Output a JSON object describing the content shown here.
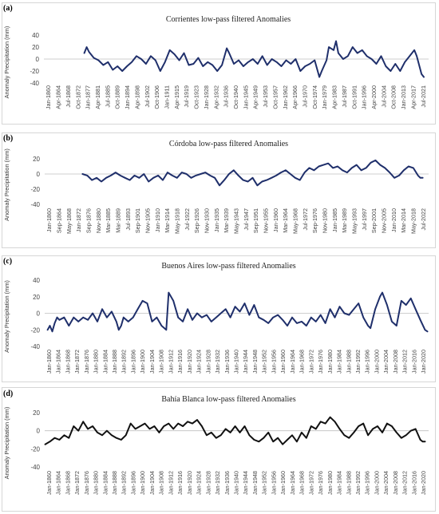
{
  "figure": {
    "panels": [
      {
        "letter": "(a)"
      },
      {
        "letter": "(b)"
      },
      {
        "letter": "(c)"
      },
      {
        "letter": "(d)"
      }
    ]
  },
  "chart_data": [
    {
      "type": "line",
      "title": "Corrientes low-pass filtered Anomalies",
      "ylabel": "Anomaly Precipitation (mm)",
      "ylim": [
        -40,
        40
      ],
      "yticks": [
        -40,
        -20,
        0,
        20,
        40
      ],
      "grid": false,
      "color": "#1f2f6b",
      "xlim": [
        1860.0,
        2022.0
      ],
      "xtick_labels": [
        "Jan-1860",
        "Apr-1864",
        "Jul-1868",
        "Oct-1872",
        "Jan-1877",
        "Apr-1881",
        "Jul-1885",
        "Oct-1889",
        "Jan-1894",
        "Apr-1898",
        "Jul-1902",
        "Oct-1906",
        "Jan-1911",
        "Apr-1915",
        "Jul-1919",
        "Oct-1923",
        "Jan-1928",
        "Apr-1932",
        "Jul-1936",
        "Oct-1940",
        "Jan-1945",
        "Apr-1949",
        "Jul-1953",
        "Oct-1957",
        "Jan-1962",
        "Apr-1966",
        "Jul-1970",
        "Oct-1974",
        "Jan-1979",
        "Apr-1983",
        "Jul-1987",
        "Oct-1991",
        "Jan-1996",
        "Apr-2000",
        "Jul-2004",
        "Oct-2008",
        "Jan-2013",
        "Apr-2017",
        "Jul-2021"
      ],
      "series": [
        {
          "x": [
            1877,
            1878,
            1879,
            1881,
            1883,
            1885,
            1887,
            1889,
            1891,
            1893,
            1895,
            1897,
            1899,
            1901,
            1903,
            1905,
            1907,
            1909,
            1911,
            1913,
            1915,
            1917,
            1919,
            1921,
            1923,
            1925,
            1927,
            1929,
            1931,
            1933,
            1935,
            1937,
            1938,
            1940,
            1942,
            1944,
            1946,
            1948,
            1950,
            1952,
            1954,
            1956,
            1958,
            1960,
            1962,
            1964,
            1966,
            1968,
            1970,
            1972,
            1974,
            1976,
            1977,
            1979,
            1980,
            1982,
            1983,
            1984,
            1986,
            1988,
            1990,
            1992,
            1994,
            1996,
            1998,
            2000,
            2002,
            2004,
            2006,
            2008,
            2010,
            2012,
            2014,
            2016,
            2017,
            2019,
            2020
          ],
          "y": [
            10,
            20,
            12,
            2,
            -2,
            -10,
            -5,
            -18,
            -12,
            -20,
            -12,
            -5,
            5,
            0,
            -8,
            5,
            -2,
            -20,
            -5,
            15,
            8,
            -2,
            10,
            -10,
            -8,
            2,
            -12,
            -5,
            -10,
            -20,
            -10,
            18,
            10,
            -8,
            -2,
            -12,
            -5,
            0,
            -8,
            5,
            -10,
            0,
            -5,
            -12,
            -2,
            -8,
            0,
            -20,
            -12,
            -8,
            -2,
            -30,
            -20,
            -2,
            20,
            15,
            30,
            10,
            0,
            5,
            20,
            10,
            15,
            5,
            0,
            -8,
            5,
            -12,
            -20,
            -8,
            -20,
            -5,
            5,
            15,
            5,
            -25,
            -30
          ]
        }
      ]
    },
    {
      "type": "line",
      "title": "Córdoba low-pass filtered Anomalies",
      "ylabel": "Anomaly Precipitation (mm)",
      "ylim": [
        -40,
        20
      ],
      "yticks": [
        -40,
        -20,
        0,
        20
      ],
      "grid": false,
      "color": "#1f2f6b",
      "xlim": [
        1860.0,
        2022.5
      ],
      "xtick_labels": [
        "Jan-1860",
        "Sep-1864",
        "May-1868",
        "Jan-1872",
        "Sep-1876",
        "Nov-1880",
        "Mar-1885",
        "Mar-1889",
        "Jul-1893",
        "Sep-1901",
        "Nov-1905",
        "Jan-1910",
        "Mar-1914",
        "May-1918",
        "Jul-1922",
        "Sep-1926",
        "Nov-1930",
        "Jan-1935",
        "Mar-1939",
        "May-1943",
        "Jul-1947",
        "Sep-1951",
        "Nov-1955",
        "Jan-1960",
        "Mar-1964",
        "May-1968",
        "Jul-1972",
        "Sep-1976",
        "Nov-1980",
        "Jan-1985",
        "Mar-1989",
        "May-1993",
        "Jul-1997",
        "Sep-2001",
        "Nov-2005",
        "Jan-2010",
        "Mar-2014",
        "May-2018",
        "Jul-2022"
      ],
      "series": [
        {
          "x": [
            1876,
            1878,
            1880,
            1882,
            1884,
            1886,
            1888,
            1890,
            1892,
            1894,
            1896,
            1898,
            1900,
            1902,
            1904,
            1906,
            1908,
            1910,
            1912,
            1914,
            1916,
            1918,
            1920,
            1922,
            1924,
            1926,
            1928,
            1930,
            1932,
            1934,
            1936,
            1938,
            1940,
            1942,
            1944,
            1946,
            1948,
            1950,
            1952,
            1954,
            1956,
            1958,
            1960,
            1962,
            1964,
            1966,
            1968,
            1970,
            1972,
            1974,
            1976,
            1978,
            1980,
            1982,
            1984,
            1986,
            1988,
            1990,
            1992,
            1994,
            1996,
            1998,
            2000,
            2002,
            2004,
            2006,
            2008,
            2010,
            2012,
            2014,
            2016,
            2018,
            2019,
            2020
          ],
          "y": [
            0,
            -2,
            -8,
            -5,
            -10,
            -5,
            -2,
            2,
            -2,
            -5,
            -8,
            -2,
            -5,
            0,
            -10,
            -5,
            -2,
            -8,
            2,
            -2,
            -5,
            2,
            0,
            -5,
            -2,
            0,
            2,
            -2,
            -5,
            -15,
            -8,
            0,
            5,
            -2,
            -8,
            -10,
            -5,
            -15,
            -10,
            -8,
            -5,
            -2,
            2,
            5,
            0,
            -5,
            -8,
            2,
            8,
            5,
            10,
            12,
            14,
            8,
            10,
            5,
            2,
            8,
            12,
            5,
            8,
            15,
            18,
            12,
            8,
            2,
            -5,
            -2,
            5,
            10,
            8,
            -2,
            -5,
            -5
          ]
        }
      ]
    },
    {
      "type": "line",
      "title": "Buenos Aires low-pass filtered Anomalies",
      "ylabel": "Anomaly Precipitation (mm)",
      "ylim": [
        -40,
        40
      ],
      "yticks": [
        -40,
        -20,
        0,
        20,
        40
      ],
      "grid": false,
      "color": "#1f2f6b",
      "xlim": [
        1859.8,
        2021.5
      ],
      "xtick_labels": [
        "Jan-1860",
        "Jan-1864",
        "Jan-1868",
        "Jan-1872",
        "Jan-1876",
        "Jan-1880",
        "Jan-1884",
        "Jan-1888",
        "Jan-1892",
        "Jan-1896",
        "Jan-1900",
        "Jan-1904",
        "Jan-1908",
        "Jan-1912",
        "Jan-1916",
        "Jan-1920",
        "Jan-1924",
        "Jan-1928",
        "Jan-1932",
        "Jan-1936",
        "Jan-1940",
        "Jan-1944",
        "Jan-1948",
        "Jan-1952",
        "Jan-1956",
        "Jan-1960",
        "Jan-1964",
        "Jan-1968",
        "Jan-1972",
        "Jan-1976",
        "Jan-1980",
        "Jan-1984",
        "Jan-1988",
        "Jan-1992",
        "Jan-1996",
        "Jan-2000",
        "Jan-2004",
        "Jan-2008",
        "Jan-2012",
        "Jan-2016",
        "Jan-2020"
      ],
      "series": [
        {
          "x": [
            1861,
            1862,
            1863,
            1864,
            1865,
            1866,
            1868,
            1870,
            1872,
            1874,
            1876,
            1878,
            1880,
            1882,
            1884,
            1886,
            1888,
            1890,
            1891,
            1892,
            1893,
            1895,
            1897,
            1899,
            1901,
            1903,
            1905,
            1907,
            1909,
            1911,
            1912,
            1914,
            1916,
            1918,
            1920,
            1922,
            1924,
            1926,
            1928,
            1930,
            1932,
            1934,
            1936,
            1938,
            1940,
            1942,
            1944,
            1946,
            1948,
            1950,
            1952,
            1954,
            1956,
            1958,
            1960,
            1962,
            1964,
            1966,
            1968,
            1970,
            1972,
            1974,
            1976,
            1978,
            1980,
            1982,
            1984,
            1986,
            1988,
            1990,
            1992,
            1994,
            1996,
            1997,
            1999,
            2001,
            2002,
            2004,
            2006,
            2008,
            2010,
            2012,
            2014,
            2016,
            2018,
            2020,
            2021
          ],
          "y": [
            -20,
            -15,
            -22,
            -12,
            -5,
            -8,
            -5,
            -15,
            -5,
            -10,
            -5,
            -8,
            0,
            -10,
            5,
            -5,
            2,
            -10,
            -20,
            -15,
            -5,
            -10,
            -5,
            5,
            15,
            12,
            -10,
            -5,
            -15,
            -20,
            25,
            15,
            -5,
            -10,
            5,
            -8,
            0,
            -5,
            -2,
            -10,
            -5,
            0,
            5,
            -5,
            8,
            2,
            12,
            -2,
            10,
            -5,
            -8,
            -12,
            -5,
            -2,
            -8,
            -15,
            -5,
            -12,
            -10,
            -15,
            -5,
            -10,
            -2,
            -12,
            5,
            -5,
            8,
            0,
            -2,
            5,
            12,
            -5,
            -15,
            -18,
            5,
            20,
            25,
            10,
            -10,
            -15,
            15,
            10,
            18,
            5,
            -8,
            -20,
            -22
          ]
        }
      ]
    },
    {
      "type": "line",
      "title": "Bahía Blanca low-pass filtered Anomalies",
      "ylabel": "Anomaly Precipitation (mm)",
      "ylim": [
        -40,
        20
      ],
      "yticks": [
        -40,
        -20,
        0,
        20
      ],
      "grid": false,
      "color": "#111111",
      "xlim": [
        1859.8,
        2021.5
      ],
      "xtick_labels": [
        "Jan-1860",
        "Jan-1864",
        "Jan-1868",
        "Jan-1872",
        "Jan-1876",
        "Jan-1880",
        "Jan-1884",
        "Jan-1888",
        "Jan-1892",
        "Jan-1896",
        "Jan-1900",
        "Jan-1904",
        "Jan-1908",
        "Jan-1912",
        "Jan-1916",
        "Jan-1920",
        "Jan-1924",
        "Jan-1928",
        "Jan-1932",
        "Jan-1936",
        "Jan-1940",
        "Jan-1944",
        "Jan-1948",
        "Jan-1952",
        "Jan-1956",
        "Jan-1960",
        "Jan-1964",
        "Jan-1968",
        "Jan-1972",
        "Jan-1976",
        "Jan-1980",
        "Jan-1984",
        "Jan-1988",
        "Jan-1992",
        "Jan-1996",
        "Jan-2000",
        "Jan-2004",
        "Jan-2008",
        "Jan-2012",
        "Jan-2016",
        "Jan-2020"
      ],
      "series": [
        {
          "x": [
            1860,
            1862,
            1864,
            1866,
            1868,
            1870,
            1872,
            1874,
            1876,
            1878,
            1880,
            1882,
            1884,
            1886,
            1888,
            1890,
            1892,
            1894,
            1896,
            1898,
            1900,
            1902,
            1904,
            1906,
            1908,
            1910,
            1912,
            1914,
            1916,
            1918,
            1920,
            1922,
            1924,
            1926,
            1928,
            1930,
            1932,
            1934,
            1936,
            1938,
            1940,
            1942,
            1944,
            1946,
            1948,
            1950,
            1952,
            1954,
            1956,
            1958,
            1960,
            1962,
            1964,
            1966,
            1968,
            1970,
            1972,
            1974,
            1976,
            1978,
            1980,
            1982,
            1984,
            1986,
            1988,
            1990,
            1992,
            1994,
            1996,
            1998,
            2000,
            2002,
            2004,
            2006,
            2008,
            2010,
            2012,
            2014,
            2016,
            2018,
            2019,
            2020
          ],
          "y": [
            -15,
            -12,
            -8,
            -10,
            -5,
            -8,
            5,
            0,
            10,
            2,
            5,
            -2,
            -5,
            0,
            -5,
            -8,
            -10,
            -5,
            8,
            2,
            5,
            8,
            2,
            5,
            -2,
            5,
            8,
            2,
            8,
            5,
            10,
            8,
            12,
            5,
            -5,
            -2,
            -8,
            -5,
            2,
            -2,
            5,
            -2,
            5,
            -5,
            -10,
            -12,
            -8,
            -2,
            -12,
            -8,
            -15,
            -10,
            -5,
            -12,
            -2,
            -8,
            5,
            2,
            10,
            8,
            15,
            10,
            2,
            -5,
            -8,
            -2,
            5,
            8,
            -5,
            2,
            5,
            -2,
            8,
            5,
            -2,
            -8,
            -5,
            0,
            2,
            -10,
            -12,
            -12
          ]
        }
      ]
    }
  ]
}
